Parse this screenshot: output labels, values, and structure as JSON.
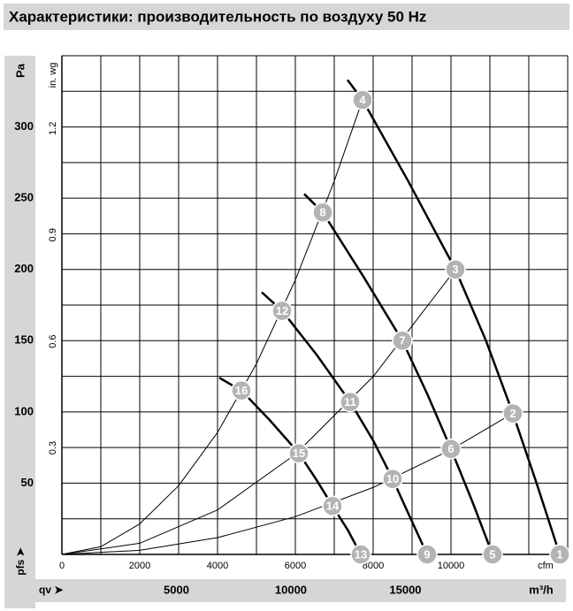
{
  "chart_data": {
    "type": "line",
    "title": "Характеристики: производительность по воздуху 50 Hz",
    "y_label": "Pa",
    "y2_label": "in. wg",
    "x_label": "cfm",
    "x2_label": "m³/h",
    "y_axis_caption": "pfs ➤",
    "x_axis_caption": "qv ➤",
    "xlim": [
      0,
      13000
    ],
    "xticks": [
      0,
      2000,
      4000,
      6000,
      8000,
      10000
    ],
    "x2lim": [
      0,
      22087
    ],
    "x2ticks": [
      5000,
      10000,
      15000
    ],
    "ylim": [
      0,
      350
    ],
    "yticks": [
      50,
      100,
      150,
      200,
      250,
      300
    ],
    "y2lim": [
      0,
      1.405
    ],
    "y2ticks": [
      0.3,
      0.6,
      0.9,
      1.2
    ],
    "xgrid": [
      1000,
      2000,
      3000,
      4000,
      5000,
      6000,
      7000,
      8000,
      9000,
      10000,
      11000,
      12000,
      13000
    ],
    "ygrid": [
      25,
      50,
      75,
      100,
      125,
      150,
      175,
      200,
      225,
      250,
      275,
      300,
      325,
      350
    ],
    "series": [
      {
        "color": "#000000",
        "line_width": 2.5,
        "x": [
          7341,
          7727,
          8900,
          10114,
          10900,
          11591,
          12200,
          12795
        ],
        "values": [
          333,
          319,
          262,
          200,
          150,
          99,
          50,
          0
        ]
      },
      {
        "color": "#000000",
        "line_width": 2.5,
        "x": [
          6227,
          6705,
          7750,
          8750,
          9400,
          10000,
          10550,
          11068
        ],
        "values": [
          253,
          240,
          195,
          150,
          112,
          74,
          37,
          0
        ]
      },
      {
        "color": "#000000",
        "line_width": 2.5,
        "x": [
          5136,
          5659,
          6550,
          7409,
          8000,
          8500,
          8950,
          9386
        ],
        "values": [
          184,
          171,
          140,
          107,
          80,
          53,
          26,
          0
        ]
      },
      {
        "color": "#000000",
        "line_width": 2.5,
        "x": [
          4045,
          4614,
          5350,
          6091,
          6550,
          6955,
          7350,
          7682
        ],
        "values": [
          124,
          115,
          94,
          71,
          52,
          34,
          17,
          0
        ]
      },
      {
        "color": "#000000",
        "line_width": 1,
        "x": [
          0,
          2000,
          4000,
          6000,
          8000,
          10000,
          11591
        ],
        "values": [
          0,
          2.9,
          11.8,
          26.5,
          47,
          73.5,
          99
        ]
      },
      {
        "color": "#000000",
        "line_width": 1,
        "x": [
          0,
          2000,
          4000,
          6000,
          8000,
          10114
        ],
        "values": [
          0,
          7.8,
          31.2,
          70.2,
          124.8,
          200
        ]
      },
      {
        "color": "#000000",
        "line_width": 1,
        "x": [
          0,
          1000,
          2000,
          3000,
          4000,
          5000,
          6000,
          7000,
          7727
        ],
        "values": [
          0,
          5.4,
          21.4,
          48.2,
          85.6,
          133.8,
          192.6,
          262,
          319
        ]
      }
    ],
    "points": {
      "color": "#b3b3b3",
      "labels": [
        "1",
        "2",
        "3",
        "4",
        "5",
        "6",
        "7",
        "8",
        "9",
        "10",
        "11",
        "12",
        "13",
        "14",
        "15",
        "16"
      ],
      "x": [
        12795,
        11591,
        10114,
        7727,
        11068,
        10000,
        8750,
        6705,
        9386,
        8500,
        7409,
        5659,
        7682,
        6955,
        6091,
        4614
      ],
      "values": [
        0,
        99,
        200,
        319,
        0,
        74,
        150,
        240,
        0,
        53,
        107,
        171,
        0,
        34,
        71,
        115
      ]
    }
  }
}
